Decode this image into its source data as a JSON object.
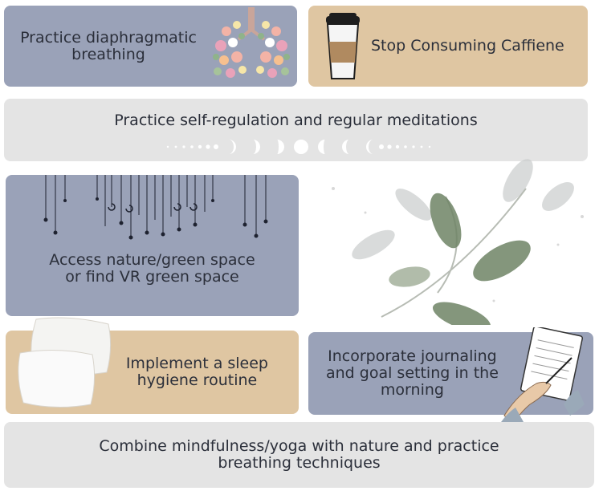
{
  "cards": {
    "breathing": {
      "label_line1": "Practice diaphragmatic",
      "label_line2": "breathing"
    },
    "caffeine": {
      "label": "Stop Consuming Caffiene"
    },
    "meditation": {
      "label": "Practice self-regulation and regular meditations"
    },
    "nature": {
      "label_line1": "Access nature/green space",
      "label_line2": "or find VR green space"
    },
    "sleep": {
      "label_line1": "Implement a sleep",
      "label_line2": "hygiene routine"
    },
    "journaling": {
      "label_line1": "Incorporate journaling",
      "label_line2": "and goal setting in the",
      "label_line3": "morning"
    },
    "mindfulness": {
      "label_line1": "Combine mindfulness/yoga with nature and practice",
      "label_line2": "breathing techniques"
    }
  },
  "colors": {
    "blue_card": "#9aa2b8",
    "tan_card": "#dfc6a2",
    "grey_card": "#e4e4e4",
    "text": "#2b2f3a"
  },
  "icons": [
    "floral-lungs-icon",
    "coffee-cup-icon",
    "moon-phases-icon",
    "hanging-stars-icon",
    "pillows-icon",
    "journal-hand-icon",
    "eucalyptus-leaves-icon"
  ]
}
